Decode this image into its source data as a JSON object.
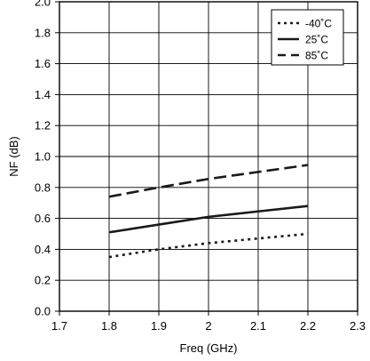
{
  "chart_data": {
    "type": "line",
    "title": "",
    "xlabel": "Freq (GHz)",
    "ylabel": "NF (dB)",
    "xlim": [
      1.7,
      2.3
    ],
    "ylim": [
      0.0,
      2.0
    ],
    "x_ticks": [
      "1.7",
      "1.8",
      "1.9",
      "2",
      "2.1",
      "2.2",
      "2.3"
    ],
    "y_ticks": [
      "0.0",
      "0.2",
      "0.4",
      "0.6",
      "0.8",
      "1.0",
      "1.2",
      "1.4",
      "1.6",
      "1.8",
      "2.0"
    ],
    "grid": true,
    "legend_position": "top-right",
    "series": [
      {
        "name": "-40˚C",
        "style": "dotted",
        "x": [
          1.8,
          1.9,
          2.0,
          2.1,
          2.2
        ],
        "values": [
          0.35,
          0.4,
          0.44,
          0.47,
          0.5
        ]
      },
      {
        "name": "25˚C",
        "style": "solid",
        "x": [
          1.8,
          1.9,
          2.0,
          2.1,
          2.2
        ],
        "values": [
          0.51,
          0.56,
          0.61,
          0.645,
          0.68
        ]
      },
      {
        "name": "85˚C",
        "style": "dashed",
        "x": [
          1.8,
          1.9,
          2.0,
          2.1,
          2.2
        ],
        "values": [
          0.74,
          0.8,
          0.855,
          0.9,
          0.945
        ]
      }
    ],
    "colors": {
      "line": "#1a1a1a",
      "grid": "#000000",
      "background": "#ffffff"
    }
  }
}
